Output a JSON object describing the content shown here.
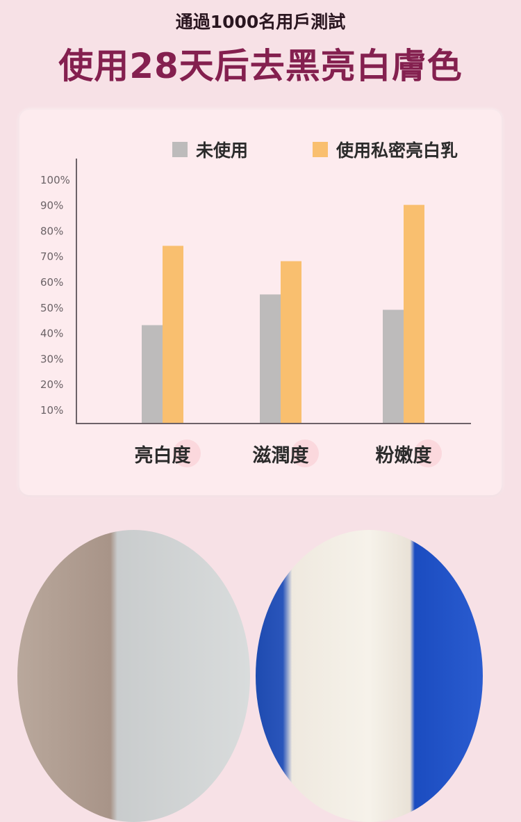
{
  "header": {
    "subtitle": "通過1000名用戶測試",
    "title": "使用28天后去黑亮白膚色"
  },
  "chart_data": {
    "type": "bar",
    "categories": [
      "亮白度",
      "滋潤度",
      "粉嫩度"
    ],
    "series": [
      {
        "name": "未使用",
        "values": [
          43,
          55,
          49
        ],
        "color": "#bdbbbb"
      },
      {
        "name": "使用私密亮白乳",
        "values": [
          74,
          68,
          90
        ],
        "color": "#f9bf6f"
      }
    ],
    "yticks": [
      "10%",
      "20%",
      "30%",
      "40%",
      "50%",
      "60%",
      "70%",
      "80%",
      "90%",
      "100%"
    ],
    "ylim": [
      4.6,
      100
    ],
    "grid": false,
    "legend": "top"
  }
}
